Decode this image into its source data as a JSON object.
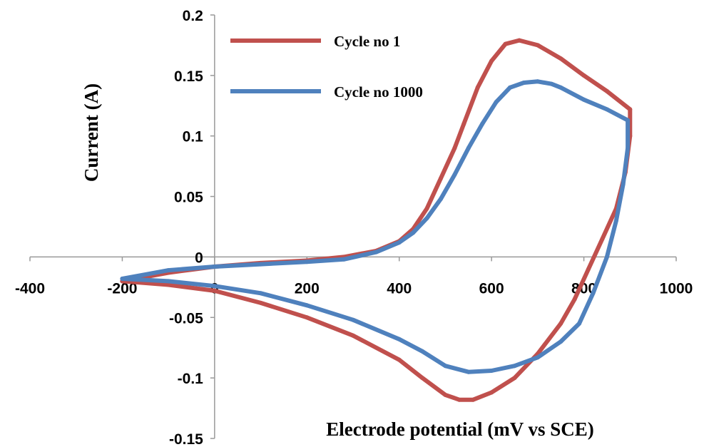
{
  "chart_data": {
    "type": "line",
    "xlabel": "Electrode potential (mV vs SCE)",
    "ylabel": "Current (A)",
    "xlim": [
      -400,
      1000
    ],
    "ylim": [
      -0.15,
      0.2
    ],
    "x_ticks": [
      -400,
      -200,
      0,
      200,
      400,
      600,
      800,
      1000
    ],
    "y_ticks": [
      -0.15,
      -0.1,
      -0.05,
      0,
      0.05,
      0.1,
      0.15,
      0.2
    ],
    "x_tick_labels": [
      "-400",
      "-200",
      "0",
      "200",
      "400",
      "600",
      "800",
      "1000"
    ],
    "y_tick_labels": [
      "-0.15",
      "-0.1",
      "-0.05",
      "0",
      "0.05",
      "0.1",
      "0.15",
      "0.2"
    ],
    "legend_position": "top-left",
    "series": [
      {
        "name": "Cycle no 1",
        "color": "#c0504d",
        "points": [
          [
            -200,
            -0.02
          ],
          [
            -100,
            -0.013
          ],
          [
            0,
            -0.008
          ],
          [
            100,
            -0.005
          ],
          [
            200,
            -0.003
          ],
          [
            280,
            0.0
          ],
          [
            350,
            0.005
          ],
          [
            400,
            0.013
          ],
          [
            430,
            0.023
          ],
          [
            460,
            0.04
          ],
          [
            490,
            0.065
          ],
          [
            520,
            0.09
          ],
          [
            540,
            0.11
          ],
          [
            570,
            0.14
          ],
          [
            600,
            0.162
          ],
          [
            630,
            0.176
          ],
          [
            660,
            0.179
          ],
          [
            700,
            0.175
          ],
          [
            750,
            0.164
          ],
          [
            800,
            0.15
          ],
          [
            850,
            0.137
          ],
          [
            900,
            0.122
          ],
          [
            900,
            0.1
          ],
          [
            890,
            0.07
          ],
          [
            870,
            0.04
          ],
          [
            840,
            0.015
          ],
          [
            810,
            -0.01
          ],
          [
            780,
            -0.035
          ],
          [
            750,
            -0.055
          ],
          [
            700,
            -0.08
          ],
          [
            650,
            -0.1
          ],
          [
            600,
            -0.112
          ],
          [
            560,
            -0.118
          ],
          [
            530,
            -0.118
          ],
          [
            500,
            -0.114
          ],
          [
            450,
            -0.1
          ],
          [
            400,
            -0.085
          ],
          [
            300,
            -0.065
          ],
          [
            200,
            -0.05
          ],
          [
            100,
            -0.038
          ],
          [
            0,
            -0.028
          ],
          [
            -100,
            -0.023
          ],
          [
            -200,
            -0.02
          ]
        ]
      },
      {
        "name": "Cycle no 1000",
        "color": "#4f81bd",
        "points": [
          [
            -200,
            -0.018
          ],
          [
            -100,
            -0.011
          ],
          [
            0,
            -0.008
          ],
          [
            100,
            -0.006
          ],
          [
            200,
            -0.004
          ],
          [
            280,
            -0.002
          ],
          [
            350,
            0.004
          ],
          [
            400,
            0.012
          ],
          [
            430,
            0.02
          ],
          [
            460,
            0.032
          ],
          [
            490,
            0.048
          ],
          [
            520,
            0.068
          ],
          [
            550,
            0.09
          ],
          [
            580,
            0.11
          ],
          [
            610,
            0.128
          ],
          [
            640,
            0.14
          ],
          [
            670,
            0.144
          ],
          [
            700,
            0.145
          ],
          [
            730,
            0.143
          ],
          [
            750,
            0.14
          ],
          [
            800,
            0.13
          ],
          [
            850,
            0.122
          ],
          [
            895,
            0.113
          ],
          [
            895,
            0.09
          ],
          [
            885,
            0.06
          ],
          [
            870,
            0.03
          ],
          [
            850,
            0.0
          ],
          [
            820,
            -0.03
          ],
          [
            790,
            -0.055
          ],
          [
            750,
            -0.07
          ],
          [
            700,
            -0.083
          ],
          [
            650,
            -0.09
          ],
          [
            600,
            -0.094
          ],
          [
            550,
            -0.095
          ],
          [
            500,
            -0.09
          ],
          [
            450,
            -0.078
          ],
          [
            400,
            -0.068
          ],
          [
            300,
            -0.052
          ],
          [
            200,
            -0.04
          ],
          [
            100,
            -0.03
          ],
          [
            0,
            -0.024
          ],
          [
            -100,
            -0.02
          ],
          [
            -200,
            -0.018
          ]
        ]
      }
    ]
  }
}
